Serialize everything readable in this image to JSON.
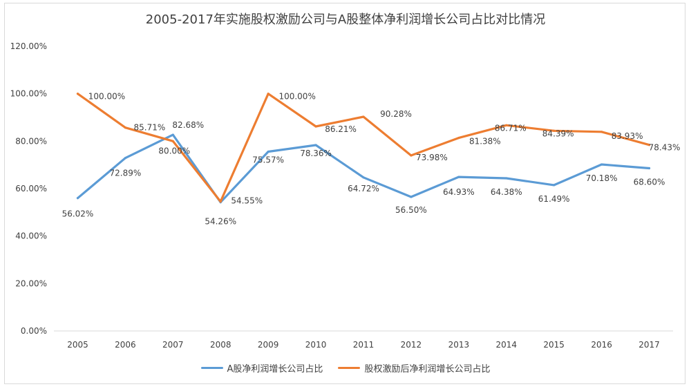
{
  "chart_data": {
    "type": "line",
    "title": "2005-2017年实施股权激励公司与A股整体净利润增长公司占比对比情况",
    "xlabel": "",
    "ylabel": "",
    "categories": [
      "2005",
      "2006",
      "2007",
      "2008",
      "2009",
      "2010",
      "2011",
      "2012",
      "2013",
      "2014",
      "2015",
      "2016",
      "2017"
    ],
    "ylim": [
      0,
      120
    ],
    "yticks": [
      0,
      20,
      40,
      60,
      80,
      100,
      120
    ],
    "ytick_labels": [
      "0.00%",
      "20.00%",
      "40.00%",
      "60.00%",
      "80.00%",
      "100.00%",
      "120.00%"
    ],
    "grid": false,
    "legend_position": "bottom",
    "series": [
      {
        "name": "A股净利润增长公司占比",
        "color": "#5b9bd5",
        "values": [
          56.02,
          72.89,
          82.68,
          54.26,
          75.57,
          78.36,
          64.72,
          56.5,
          64.93,
          64.38,
          61.49,
          70.18,
          68.6
        ],
        "labels": [
          "56.02%",
          "72.89%",
          "82.68%",
          "54.26%",
          "75.57%",
          "78.36%",
          "64.72%",
          "56.50%",
          "64.93%",
          "64.38%",
          "61.49%",
          "70.18%",
          "68.60%"
        ]
      },
      {
        "name": "股权激励后净利润增长公司占比",
        "color": "#ed7d31",
        "values": [
          100.0,
          85.71,
          80.0,
          54.55,
          100.0,
          86.21,
          90.28,
          73.98,
          81.38,
          86.71,
          84.39,
          83.93,
          78.43
        ],
        "labels": [
          "100.00%",
          "85.71%",
          "80.00%",
          "54.55%",
          "100.00%",
          "86.21%",
          "90.28%",
          "73.98%",
          "81.38%",
          "86.71%",
          "84.39%",
          "83.93%",
          "78.43%"
        ]
      }
    ]
  }
}
